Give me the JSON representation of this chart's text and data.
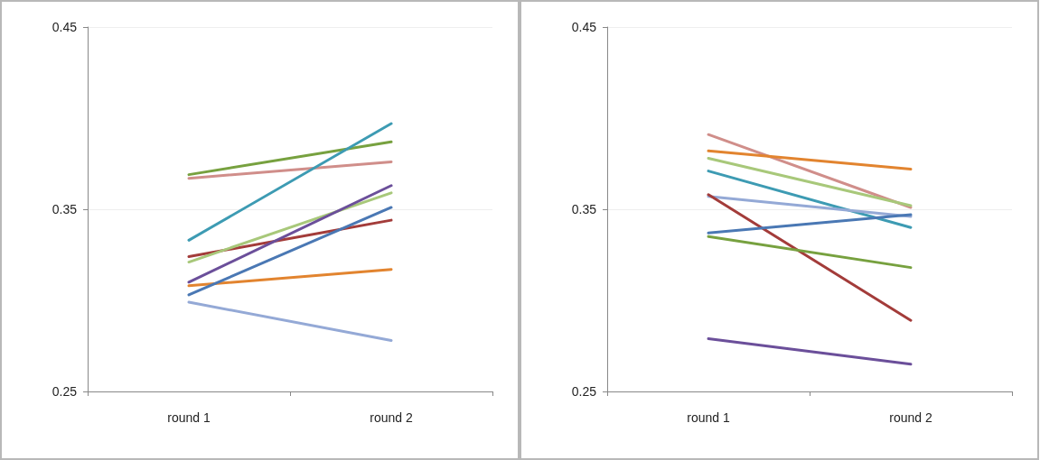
{
  "chart_data": [
    {
      "type": "line",
      "categories": [
        "round 1",
        "round 2"
      ],
      "ylim": [
        0.25,
        0.45
      ],
      "yticks": [
        0.25,
        0.35,
        0.45
      ],
      "grid": "y",
      "marker": "none",
      "line_style": "solid",
      "series": [
        {
          "color": "#77a13f",
          "values": [
            0.369,
            0.387
          ]
        },
        {
          "color": "#d08e8a",
          "values": [
            0.367,
            0.376
          ]
        },
        {
          "color": "#3d9bb3",
          "values": [
            0.333,
            0.397
          ]
        },
        {
          "color": "#a33c3a",
          "values": [
            0.324,
            0.344
          ]
        },
        {
          "color": "#a8c87a",
          "values": [
            0.321,
            0.359
          ]
        },
        {
          "color": "#6b4f9a",
          "values": [
            0.31,
            0.363
          ]
        },
        {
          "color": "#e2842f",
          "values": [
            0.308,
            0.317
          ]
        },
        {
          "color": "#4a78b4",
          "values": [
            0.303,
            0.351
          ]
        },
        {
          "color": "#94a9d6",
          "values": [
            0.299,
            0.278
          ]
        }
      ]
    },
    {
      "type": "line",
      "categories": [
        "round 1",
        "round 2"
      ],
      "ylim": [
        0.25,
        0.45
      ],
      "yticks": [
        0.25,
        0.35,
        0.45
      ],
      "grid": "y",
      "marker": "none",
      "line_style": "solid",
      "series": [
        {
          "color": "#d08e8a",
          "values": [
            0.391,
            0.351
          ]
        },
        {
          "color": "#e2842f",
          "values": [
            0.382,
            0.372
          ]
        },
        {
          "color": "#a8c87a",
          "values": [
            0.378,
            0.352
          ]
        },
        {
          "color": "#3d9bb3",
          "values": [
            0.371,
            0.34
          ]
        },
        {
          "color": "#94a9d6",
          "values": [
            0.357,
            0.346
          ]
        },
        {
          "color": "#a33c3a",
          "values": [
            0.358,
            0.289
          ]
        },
        {
          "color": "#4a78b4",
          "values": [
            0.337,
            0.347
          ]
        },
        {
          "color": "#77a13f",
          "values": [
            0.335,
            0.318
          ]
        },
        {
          "color": "#6b4f9a",
          "values": [
            0.279,
            0.265
          ]
        }
      ]
    }
  ]
}
